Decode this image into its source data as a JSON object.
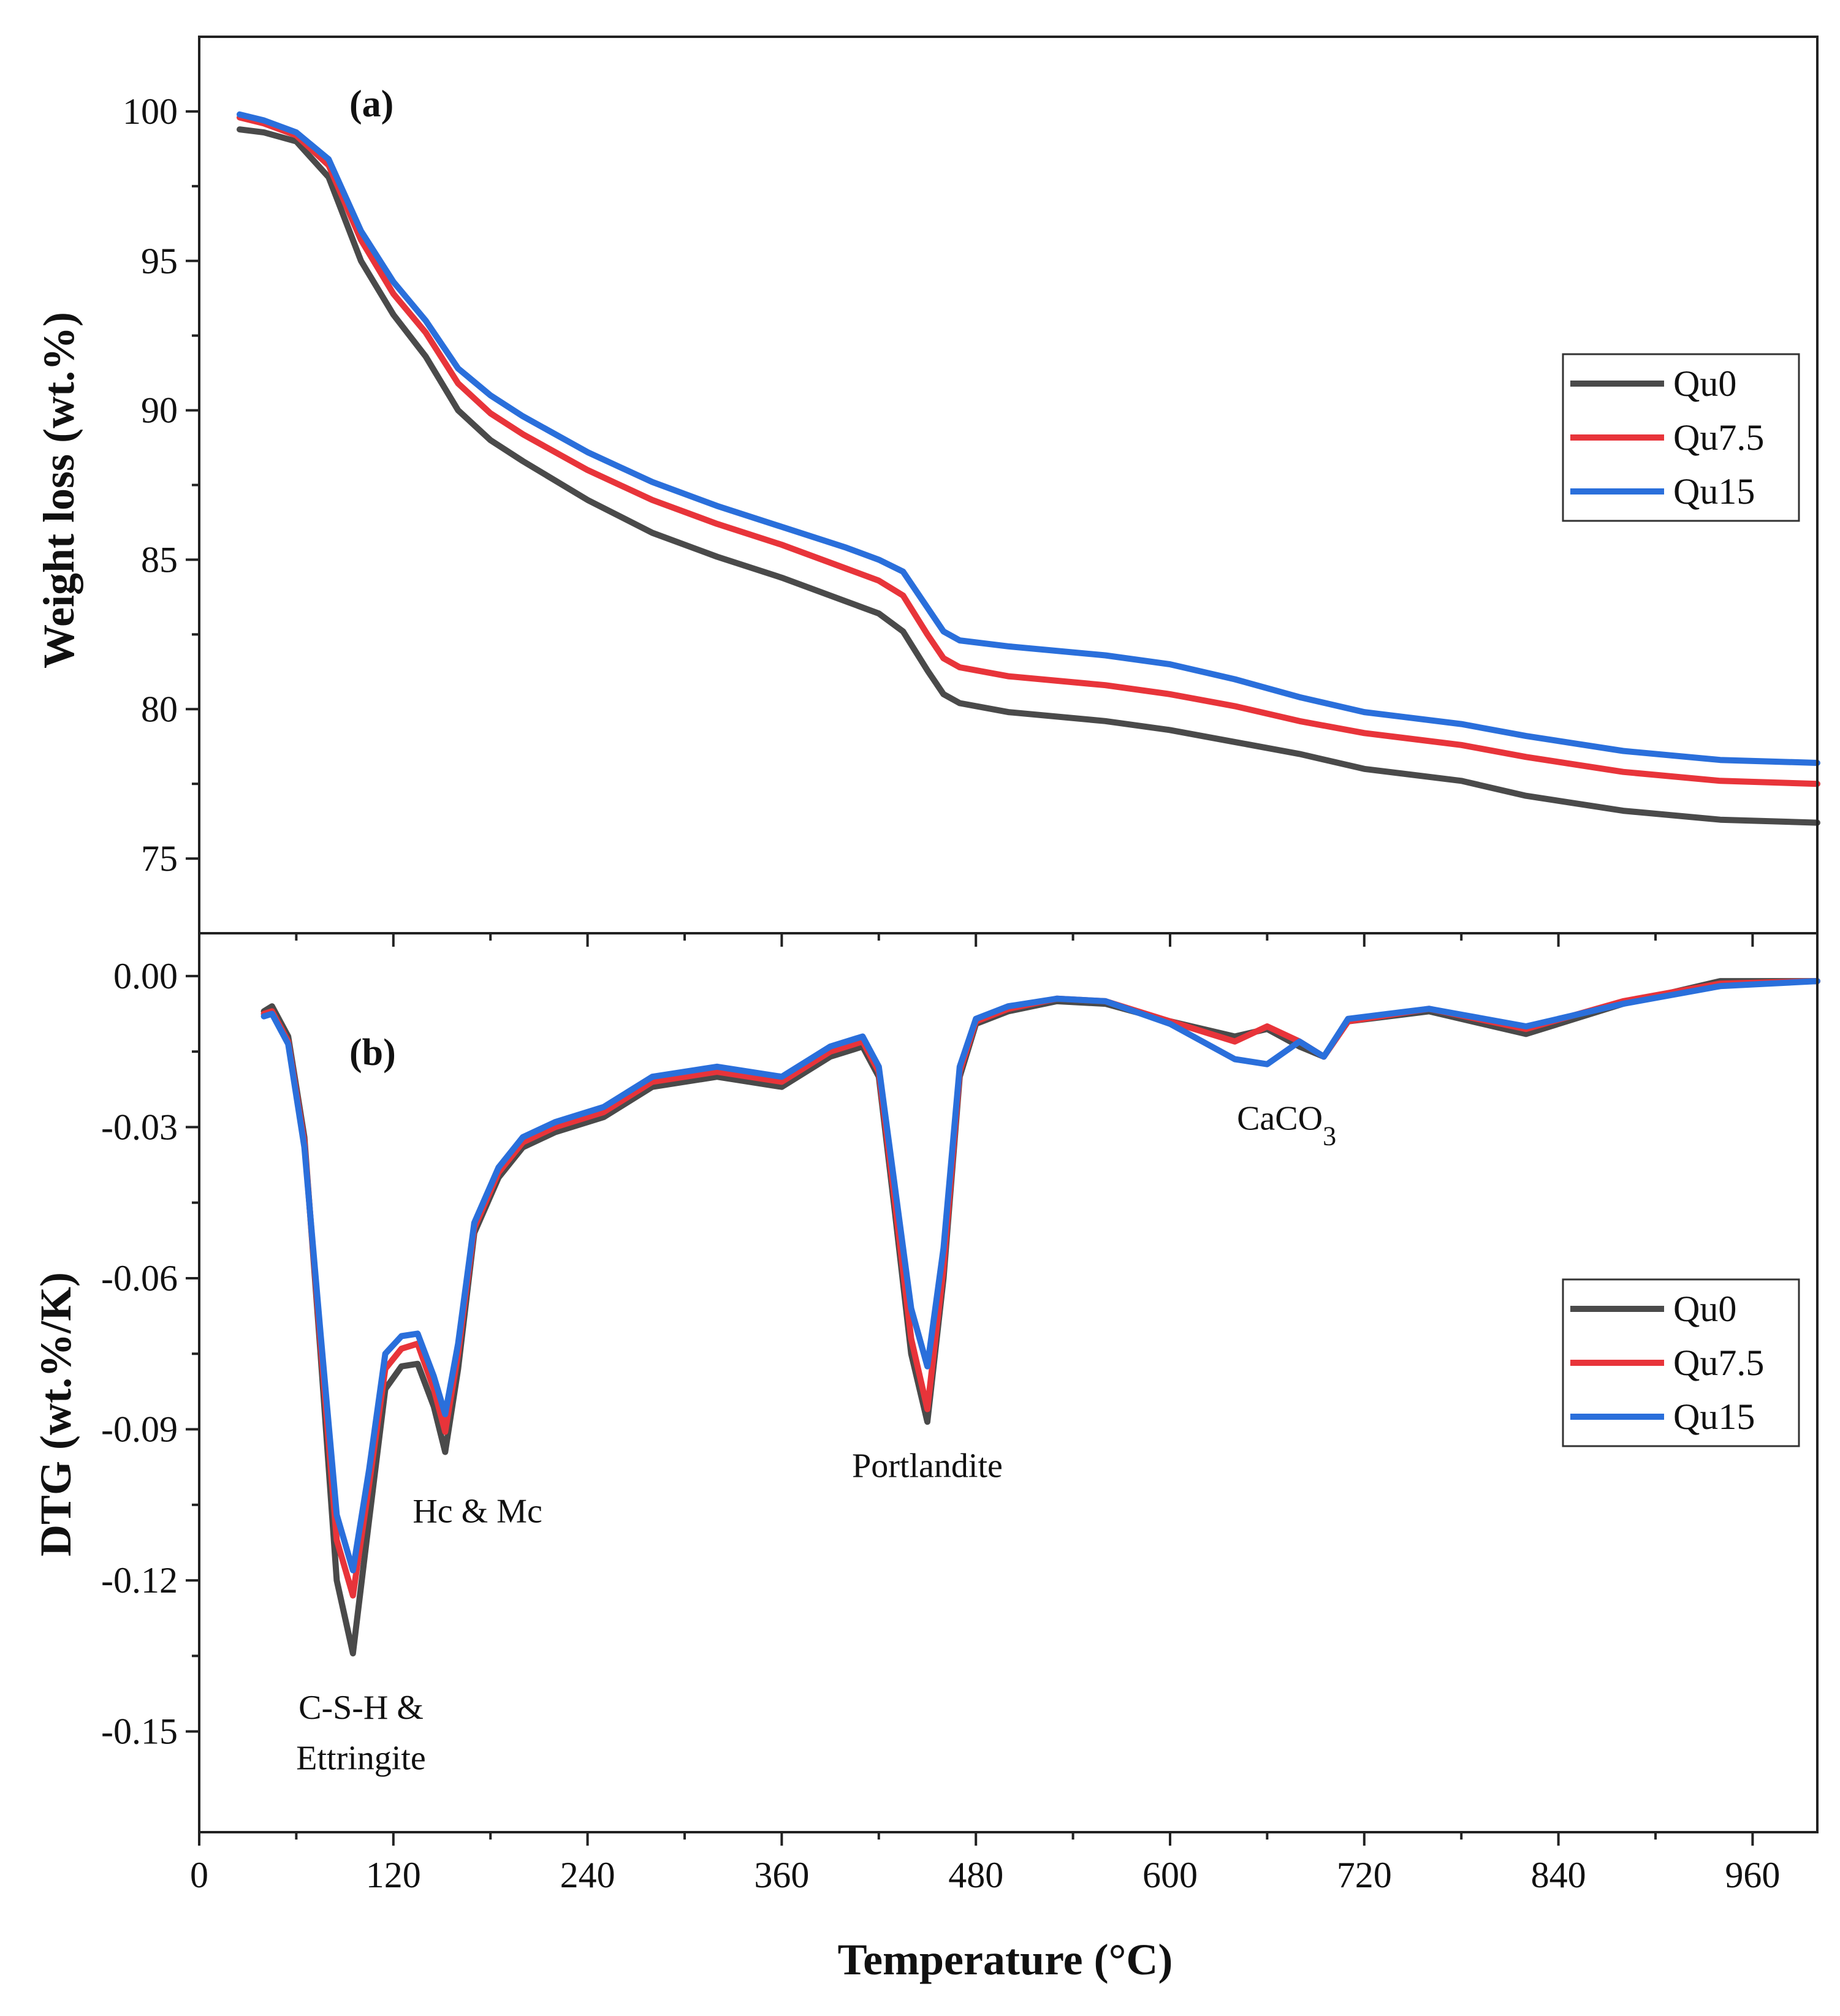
{
  "chart_data": [
    {
      "type": "line",
      "panel_label": "(a)",
      "xlabel": "",
      "ylabel": "Weight loss (wt.%)",
      "xlim": [
        0,
        1000
      ],
      "ylim": [
        72.5,
        102.5
      ],
      "yticks": [
        75,
        80,
        85,
        90,
        95,
        100
      ],
      "ytick_labels": [
        "75",
        "80",
        "85",
        "90",
        "95",
        "100"
      ],
      "legend_placement": "right",
      "series": [
        {
          "name": "Qu0",
          "color": "#4a4a4a",
          "x": [
            25,
            40,
            60,
            80,
            100,
            120,
            140,
            160,
            180,
            200,
            240,
            280,
            320,
            360,
            400,
            420,
            435,
            450,
            460,
            470,
            500,
            560,
            600,
            640,
            680,
            720,
            780,
            820,
            880,
            940,
            1000
          ],
          "y": [
            99.4,
            99.3,
            99.0,
            97.8,
            95.0,
            93.2,
            91.8,
            90.0,
            89.0,
            88.3,
            87.0,
            85.9,
            85.1,
            84.4,
            83.6,
            83.2,
            82.6,
            81.3,
            80.5,
            80.2,
            79.9,
            79.6,
            79.3,
            78.9,
            78.5,
            78.0,
            77.6,
            77.1,
            76.6,
            76.3,
            76.2
          ]
        },
        {
          "name": "Qu7.5",
          "color": "#e8343a",
          "x": [
            25,
            40,
            60,
            80,
            100,
            120,
            140,
            160,
            180,
            200,
            240,
            280,
            320,
            360,
            400,
            420,
            435,
            450,
            460,
            470,
            500,
            560,
            600,
            640,
            680,
            720,
            780,
            820,
            880,
            940,
            1000
          ],
          "y": [
            99.8,
            99.6,
            99.2,
            98.2,
            95.7,
            93.9,
            92.6,
            90.9,
            89.9,
            89.2,
            88.0,
            87.0,
            86.2,
            85.5,
            84.7,
            84.3,
            83.8,
            82.5,
            81.7,
            81.4,
            81.1,
            80.8,
            80.5,
            80.1,
            79.6,
            79.2,
            78.8,
            78.4,
            77.9,
            77.6,
            77.5
          ]
        },
        {
          "name": "Qu15",
          "color": "#2a6fdb",
          "x": [
            25,
            40,
            60,
            80,
            100,
            120,
            140,
            160,
            180,
            200,
            240,
            280,
            320,
            360,
            400,
            420,
            435,
            450,
            460,
            470,
            500,
            560,
            600,
            640,
            680,
            720,
            780,
            820,
            880,
            940,
            1000
          ],
          "y": [
            99.9,
            99.7,
            99.3,
            98.4,
            96.0,
            94.3,
            93.0,
            91.4,
            90.5,
            89.8,
            88.6,
            87.6,
            86.8,
            86.1,
            85.4,
            85.0,
            84.6,
            83.4,
            82.6,
            82.3,
            82.1,
            81.8,
            81.5,
            81.0,
            80.4,
            79.9,
            79.5,
            79.1,
            78.6,
            78.3,
            78.2
          ]
        }
      ]
    },
    {
      "type": "line",
      "panel_label": "(b)",
      "xlabel": "Temperature (°C)",
      "ylabel": "DTG (wt.%/K)",
      "xlim": [
        0,
        1000
      ],
      "ylim": [
        -0.17,
        0.0085
      ],
      "xticks": [
        0,
        120,
        240,
        360,
        480,
        600,
        720,
        840,
        960
      ],
      "xtick_labels": [
        "0",
        "120",
        "240",
        "360",
        "480",
        "600",
        "720",
        "840",
        "960"
      ],
      "yticks": [
        0.0,
        -0.03,
        -0.06,
        -0.09,
        -0.12,
        -0.15
      ],
      "ytick_labels": [
        "0.00",
        "-0.03",
        "-0.06",
        "-0.09",
        "-0.12",
        "-0.15"
      ],
      "legend_placement": "right",
      "annotations": [
        {
          "text": "C-S-H &",
          "x": 100,
          "y": -0.1475
        },
        {
          "text": "Ettringite",
          "x": 100,
          "y": -0.1575
        },
        {
          "text": "Hc & Mc",
          "x": 172,
          "y": -0.1085
        },
        {
          "text": "Portlandite",
          "x": 450,
          "y": -0.0995
        },
        {
          "text": "CaCO",
          "x": 672,
          "y": -0.0305,
          "sub": "3"
        }
      ],
      "series": [
        {
          "name": "Qu0",
          "color": "#4a4a4a",
          "x": [
            40,
            45,
            55,
            65,
            75,
            85,
            95,
            105,
            115,
            125,
            135,
            145,
            152,
            160,
            170,
            185,
            200,
            220,
            250,
            280,
            320,
            360,
            390,
            410,
            420,
            430,
            440,
            450,
            460,
            470,
            480,
            500,
            530,
            560,
            600,
            640,
            660,
            680,
            695,
            710,
            760,
            820,
            880,
            940,
            1000
          ],
          "y": [
            -0.007,
            -0.006,
            -0.012,
            -0.032,
            -0.075,
            -0.12,
            -0.1345,
            -0.108,
            -0.082,
            -0.0775,
            -0.077,
            -0.0855,
            -0.0945,
            -0.078,
            -0.051,
            -0.04,
            -0.034,
            -0.031,
            -0.028,
            -0.022,
            -0.02,
            -0.022,
            -0.016,
            -0.014,
            -0.02,
            -0.047,
            -0.075,
            -0.0885,
            -0.06,
            -0.02,
            -0.0095,
            -0.007,
            -0.005,
            -0.0055,
            -0.009,
            -0.012,
            -0.0105,
            -0.014,
            -0.016,
            -0.009,
            -0.007,
            -0.0115,
            -0.0055,
            -0.001,
            -0.001
          ]
        },
        {
          "name": "Qu7.5",
          "color": "#e8343a",
          "x": [
            40,
            45,
            55,
            65,
            75,
            85,
            95,
            105,
            115,
            125,
            135,
            145,
            152,
            160,
            170,
            185,
            200,
            220,
            250,
            280,
            320,
            360,
            390,
            410,
            420,
            430,
            440,
            450,
            460,
            470,
            480,
            500,
            530,
            560,
            600,
            640,
            660,
            680,
            695,
            710,
            760,
            820,
            880,
            940,
            1000
          ],
          "y": [
            -0.0075,
            -0.007,
            -0.013,
            -0.033,
            -0.073,
            -0.112,
            -0.123,
            -0.101,
            -0.078,
            -0.074,
            -0.073,
            -0.082,
            -0.0905,
            -0.075,
            -0.05,
            -0.039,
            -0.033,
            -0.03,
            -0.027,
            -0.021,
            -0.019,
            -0.021,
            -0.015,
            -0.013,
            -0.019,
            -0.045,
            -0.072,
            -0.086,
            -0.058,
            -0.019,
            -0.009,
            -0.0065,
            -0.0045,
            -0.005,
            -0.009,
            -0.013,
            -0.01,
            -0.013,
            -0.016,
            -0.009,
            -0.0065,
            -0.0105,
            -0.005,
            -0.0015,
            -0.001
          ]
        },
        {
          "name": "Qu15",
          "color": "#2a6fdb",
          "x": [
            40,
            45,
            55,
            65,
            75,
            85,
            95,
            105,
            115,
            125,
            135,
            145,
            152,
            160,
            170,
            185,
            200,
            220,
            250,
            280,
            320,
            360,
            390,
            410,
            420,
            430,
            440,
            450,
            460,
            470,
            480,
            500,
            530,
            560,
            600,
            640,
            660,
            680,
            695,
            710,
            760,
            820,
            880,
            940,
            1000
          ],
          "y": [
            -0.008,
            -0.0075,
            -0.0135,
            -0.034,
            -0.071,
            -0.107,
            -0.118,
            -0.098,
            -0.075,
            -0.0715,
            -0.071,
            -0.0795,
            -0.087,
            -0.073,
            -0.049,
            -0.038,
            -0.032,
            -0.029,
            -0.026,
            -0.02,
            -0.018,
            -0.02,
            -0.014,
            -0.012,
            -0.018,
            -0.042,
            -0.066,
            -0.0775,
            -0.054,
            -0.018,
            -0.0085,
            -0.006,
            -0.0045,
            -0.005,
            -0.0095,
            -0.0165,
            -0.0175,
            -0.013,
            -0.016,
            -0.0085,
            -0.0065,
            -0.01,
            -0.0055,
            -0.002,
            -0.001
          ]
        }
      ]
    }
  ]
}
